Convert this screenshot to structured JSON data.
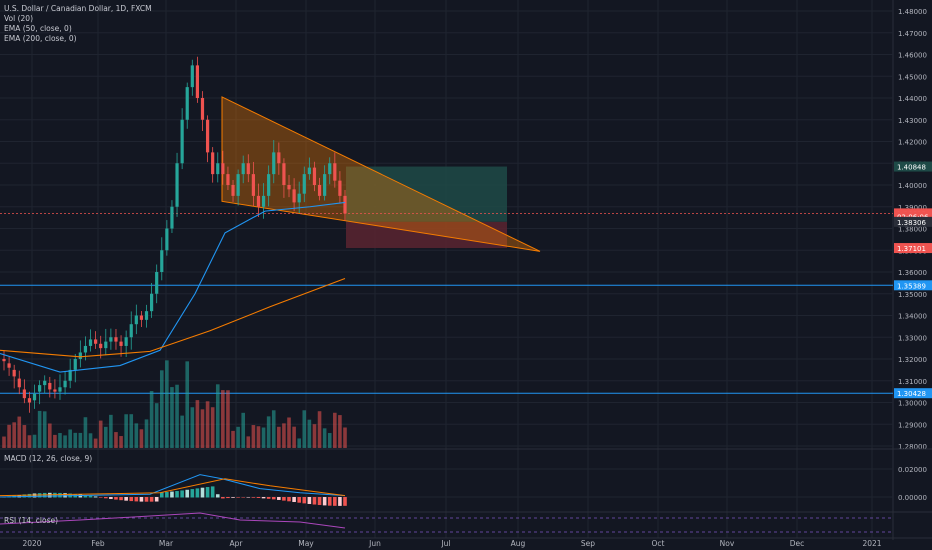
{
  "legend": {
    "symbol": "U.S. Dollar / Canadian Dollar, 1D, FXCM",
    "vol": "Vol (20)",
    "ema50": "EMA (50, close, 0)",
    "ema200": "EMA (200, close, 0)"
  },
  "macd_legend": "MACD (12, 26, close, 9)",
  "rsi_legend": "RSI (14, close)",
  "colors": {
    "background": "#131722",
    "grid": "#1f2430",
    "up": "#26a69a",
    "down": "#ef5350",
    "ema50": "#2196f3",
    "ema200": "#f57c00",
    "hline": "#2196f3",
    "triangle": "#f57c00",
    "profit_zone": "#1e4a47",
    "loss_zone": "#5a2430",
    "axis_text": "#b2b5be"
  },
  "chart_data": {
    "type": "candlestick",
    "x_labels": [
      "2020",
      "Feb",
      "Mar",
      "Apr",
      "May",
      "Jun",
      "Jul",
      "Aug",
      "Sep",
      "Oct",
      "Nov",
      "Dec",
      "2021"
    ],
    "y_ticks": [
      "1.48000",
      "1.47000",
      "1.46000",
      "1.45000",
      "1.44000",
      "1.43000",
      "1.42000",
      "1.41000",
      "1.40000",
      "1.39000",
      "1.38000",
      "1.37000",
      "1.36000",
      "1.35000",
      "1.34000",
      "1.33000",
      "1.32000",
      "1.31000",
      "1.30000",
      "1.29000",
      "1.28000"
    ],
    "y_range": [
      1.28,
      1.48
    ],
    "price_tags": [
      {
        "label": "1.40848",
        "value": 1.40848,
        "color": "#1e4a47"
      },
      {
        "label": "1.38695",
        "value": 1.38695,
        "color": "#ef5350"
      },
      {
        "label": "02:06:06",
        "value": 1.3855,
        "color": "#ef5350"
      },
      {
        "label": "1.38306",
        "value": 1.38306,
        "color": "#2a2e39"
      },
      {
        "label": "1.37101",
        "value": 1.37101,
        "color": "#ef5350"
      },
      {
        "label": "1.35389",
        "value": 1.35389,
        "color": "#2196f3"
      },
      {
        "label": "1.30428",
        "value": 1.30428,
        "color": "#2196f3"
      }
    ],
    "horizontal_lines": [
      1.35389,
      1.30428
    ],
    "macd_ticks": [
      "0.02000",
      "0.00000"
    ],
    "series": [
      {
        "name": "price",
        "close_path": [
          [
            1.32,
            1.319
          ],
          [
            1.318,
            1.316
          ],
          [
            1.315,
            1.312
          ],
          [
            1.311,
            1.307
          ],
          [
            1.306,
            1.302
          ],
          [
            1.302,
            1.3
          ],
          [
            1.301,
            1.304
          ],
          [
            1.305,
            1.308
          ],
          [
            1.308,
            1.31
          ],
          [
            1.309,
            1.306
          ],
          [
            1.306,
            1.305
          ],
          [
            1.305,
            1.307
          ],
          [
            1.307,
            1.31
          ],
          [
            1.31,
            1.315
          ],
          [
            1.315,
            1.32
          ],
          [
            1.32,
            1.323
          ],
          [
            1.323,
            1.326
          ],
          [
            1.326,
            1.329
          ],
          [
            1.329,
            1.327
          ],
          [
            1.327,
            1.325
          ],
          [
            1.325,
            1.328
          ],
          [
            1.328,
            1.33
          ],
          [
            1.33,
            1.328
          ],
          [
            1.328,
            1.326
          ],
          [
            1.326,
            1.33
          ],
          [
            1.33,
            1.336
          ],
          [
            1.336,
            1.34
          ],
          [
            1.34,
            1.338
          ],
          [
            1.338,
            1.342
          ],
          [
            1.342,
            1.35
          ],
          [
            1.35,
            1.36
          ],
          [
            1.36,
            1.37
          ],
          [
            1.37,
            1.38
          ],
          [
            1.38,
            1.39
          ],
          [
            1.39,
            1.41
          ],
          [
            1.41,
            1.43
          ],
          [
            1.43,
            1.445
          ],
          [
            1.445,
            1.455
          ],
          [
            1.455,
            1.44
          ],
          [
            1.44,
            1.43
          ],
          [
            1.43,
            1.415
          ],
          [
            1.415,
            1.405
          ],
          [
            1.405,
            1.41
          ],
          [
            1.41,
            1.405
          ],
          [
            1.405,
            1.4
          ],
          [
            1.4,
            1.395
          ],
          [
            1.395,
            1.405
          ],
          [
            1.405,
            1.41
          ],
          [
            1.41,
            1.405
          ],
          [
            1.405,
            1.395
          ],
          [
            1.395,
            1.39
          ],
          [
            1.39,
            1.395
          ],
          [
            1.395,
            1.405
          ],
          [
            1.405,
            1.415
          ],
          [
            1.415,
            1.41
          ],
          [
            1.41,
            1.4
          ],
          [
            1.4,
            1.398
          ],
          [
            1.398,
            1.392
          ],
          [
            1.392,
            1.396
          ],
          [
            1.396,
            1.405
          ],
          [
            1.405,
            1.408
          ],
          [
            1.408,
            1.4
          ],
          [
            1.4,
            1.395
          ],
          [
            1.395,
            1.405
          ],
          [
            1.405,
            1.41
          ],
          [
            1.41,
            1.402
          ],
          [
            1.402,
            1.395
          ],
          [
            1.395,
            1.3869
          ]
        ]
      }
    ]
  }
}
